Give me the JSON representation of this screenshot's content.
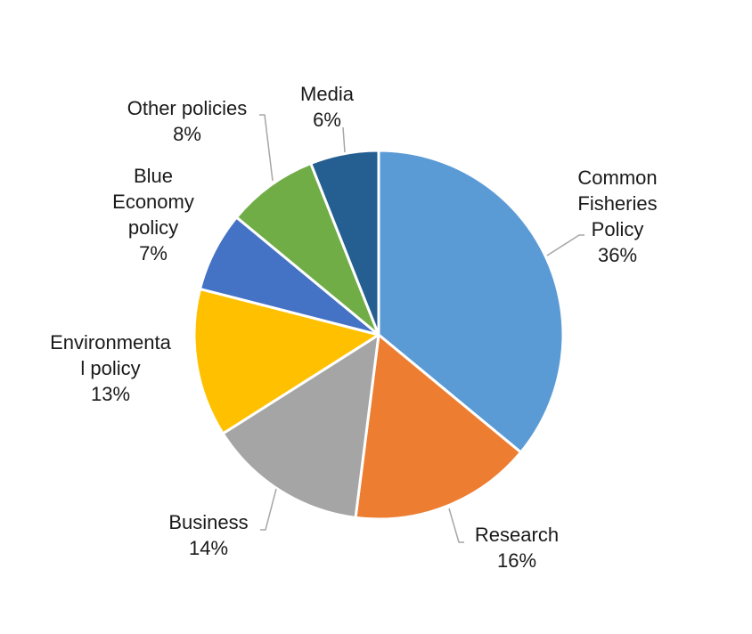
{
  "chart_data": {
    "type": "pie",
    "title": "",
    "legend": "none",
    "start_angle_deg": 0,
    "direction": "clockwise",
    "slices": [
      {
        "name": "Common Fisheries Policy",
        "label_lines": [
          "Common",
          "Fisheries",
          "Policy"
        ],
        "value": 36,
        "value_label": "36%",
        "color": "#5B9BD5"
      },
      {
        "name": "Research",
        "label_lines": [
          "Research"
        ],
        "value": 16,
        "value_label": "16%",
        "color": "#ED7D31"
      },
      {
        "name": "Business",
        "label_lines": [
          "Business"
        ],
        "value": 14,
        "value_label": "14%",
        "color": "#A5A5A5"
      },
      {
        "name": "Environmental policy",
        "label_lines": [
          "Environmenta",
          "l policy"
        ],
        "value": 13,
        "value_label": "13%",
        "color": "#FFC000"
      },
      {
        "name": "Blue Economy policy",
        "label_lines": [
          "Blue",
          "Economy",
          "policy"
        ],
        "value": 7,
        "value_label": "7%",
        "color": "#4472C4"
      },
      {
        "name": "Other policies",
        "label_lines": [
          "Other policies"
        ],
        "value": 8,
        "value_label": "8%",
        "color": "#70AD47"
      },
      {
        "name": "Media",
        "label_lines": [
          "Media"
        ],
        "value": 6,
        "value_label": "6%",
        "color": "#255E91"
      }
    ]
  }
}
